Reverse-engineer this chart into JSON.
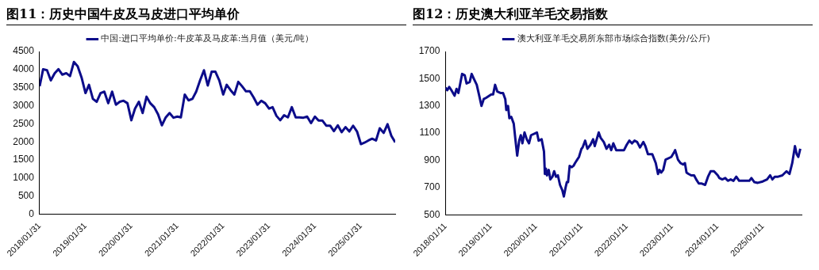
{
  "chart_data": [
    {
      "type": "line",
      "title": "图11：历史中国牛皮及马皮进口平均单价",
      "legend": "top",
      "marker": "none",
      "line_style": "solid",
      "grid": false,
      "xlim": [
        "2018-01-31",
        "2025-10-31"
      ],
      "xticks": [
        {
          "value": "2018-01-31",
          "label": "2018/01/31"
        },
        {
          "value": "2019-01-31",
          "label": "2019/01/31"
        },
        {
          "value": "2020-01-31",
          "label": "2020/01/31"
        },
        {
          "value": "2021-01-31",
          "label": "2021/01/31"
        },
        {
          "value": "2022-01-31",
          "label": "2022/01/31"
        },
        {
          "value": "2023-01-31",
          "label": "2023/01/31"
        },
        {
          "value": "2024-01-31",
          "label": "2024/01/31"
        },
        {
          "value": "2025-01-31",
          "label": "2025/01/31"
        }
      ],
      "ylim": [
        0,
        4500
      ],
      "yticks": [
        0,
        500,
        1000,
        1500,
        2000,
        2500,
        3000,
        3500,
        4000,
        4500
      ],
      "series": [
        {
          "name": "中国:进口平均单价:牛皮革及马皮革:当月值（美元/吨）",
          "color": "#0c0c8a",
          "x": [
            "2018-01-31",
            "2018-02-28",
            "2018-03-31",
            "2018-04-30",
            "2018-05-31",
            "2018-06-30",
            "2018-07-31",
            "2018-08-31",
            "2018-09-30",
            "2018-10-31",
            "2018-11-30",
            "2018-12-31",
            "2019-01-31",
            "2019-02-28",
            "2019-03-31",
            "2019-04-30",
            "2019-05-31",
            "2019-06-30",
            "2019-07-31",
            "2019-08-31",
            "2019-09-30",
            "2019-10-31",
            "2019-11-30",
            "2019-12-31",
            "2020-01-31",
            "2020-02-29",
            "2020-03-31",
            "2020-04-30",
            "2020-05-31",
            "2020-06-30",
            "2020-07-31",
            "2020-08-31",
            "2020-09-30",
            "2020-10-31",
            "2020-11-30",
            "2020-12-31",
            "2021-01-31",
            "2021-02-28",
            "2021-03-31",
            "2021-04-30",
            "2021-05-31",
            "2021-06-30",
            "2021-07-31",
            "2021-08-31",
            "2021-09-30",
            "2021-10-31",
            "2021-11-30",
            "2021-12-31",
            "2022-01-31",
            "2022-02-28",
            "2022-03-31",
            "2022-04-30",
            "2022-05-31",
            "2022-06-30",
            "2022-07-31",
            "2022-08-31",
            "2022-09-30",
            "2022-10-31",
            "2022-11-30",
            "2022-12-31",
            "2023-01-31",
            "2023-02-28",
            "2023-03-31",
            "2023-04-30",
            "2023-05-31",
            "2023-06-30",
            "2023-07-31",
            "2023-08-31",
            "2023-09-30",
            "2023-10-31",
            "2023-11-30",
            "2023-12-31",
            "2024-01-31",
            "2024-02-29",
            "2024-03-31",
            "2024-04-30",
            "2024-05-31",
            "2024-06-30",
            "2024-07-31",
            "2024-08-31",
            "2024-09-30",
            "2024-10-31",
            "2024-11-30",
            "2024-12-31",
            "2025-01-31",
            "2025-02-28",
            "2025-03-31",
            "2025-04-30",
            "2025-05-31",
            "2025-06-30",
            "2025-07-31",
            "2025-08-31",
            "2025-09-30",
            "2025-10-31"
          ],
          "values": [
            3540,
            4010,
            3980,
            3700,
            3900,
            4010,
            3860,
            3900,
            3820,
            4210,
            4090,
            3780,
            3350,
            3580,
            3190,
            3110,
            3350,
            3390,
            3070,
            3390,
            3030,
            3110,
            3140,
            3070,
            2600,
            2920,
            3110,
            2800,
            3250,
            3070,
            2960,
            2760,
            2460,
            2680,
            2800,
            2670,
            2700,
            2680,
            3310,
            3150,
            3190,
            3390,
            3700,
            3980,
            3560,
            3940,
            3940,
            3700,
            3310,
            3580,
            3430,
            3310,
            3660,
            3540,
            3400,
            3400,
            3230,
            3030,
            3140,
            3070,
            2920,
            2960,
            2720,
            2600,
            2740,
            2680,
            2960,
            2680,
            2680,
            2670,
            2700,
            2520,
            2700,
            2590,
            2590,
            2450,
            2450,
            2300,
            2460,
            2270,
            2410,
            2290,
            2450,
            2290,
            1940,
            1980,
            2040,
            2090,
            2040,
            2380,
            2250,
            2490,
            2170,
            1990
          ]
        }
      ]
    },
    {
      "type": "line",
      "title": "图12：历史澳大利亚羊毛交易指数",
      "legend": "top",
      "marker": "none",
      "line_style": "solid",
      "grid": false,
      "xlim": [
        "2018-01-11",
        "2025-11-20"
      ],
      "xticks": [
        {
          "value": "2018-01-11",
          "label": "2018/01/11"
        },
        {
          "value": "2019-01-11",
          "label": "2019/01/11"
        },
        {
          "value": "2020-01-11",
          "label": "2020/01/11"
        },
        {
          "value": "2021-01-11",
          "label": "2021/01/11"
        },
        {
          "value": "2022-01-11",
          "label": "2022/01/11"
        },
        {
          "value": "2023-01-11",
          "label": "2023/01/11"
        },
        {
          "value": "2024-01-11",
          "label": "2024/01/11"
        },
        {
          "value": "2025-01-11",
          "label": "2025/01/11"
        }
      ],
      "ylim": [
        500,
        1700
      ],
      "yticks": [
        500,
        700,
        900,
        1100,
        1300,
        1500,
        1700
      ],
      "series": [
        {
          "name": "澳大利亚羊毛交易所东部市场综合指数(美分/公斤)",
          "color": "#0c0c8a",
          "x": [
            "2018-01-11",
            "2018-01-25",
            "2018-02-10",
            "2018-02-28",
            "2018-03-25",
            "2018-04-10",
            "2018-04-25",
            "2018-05-25",
            "2018-06-15",
            "2018-06-30",
            "2018-07-25",
            "2018-08-10",
            "2018-08-25",
            "2018-09-20",
            "2018-10-10",
            "2018-10-28",
            "2018-11-15",
            "2018-12-05",
            "2019-01-15",
            "2019-01-30",
            "2019-02-15",
            "2019-03-05",
            "2019-03-30",
            "2019-04-20",
            "2019-05-08",
            "2019-05-16",
            "2019-05-30",
            "2019-06-10",
            "2019-06-25",
            "2019-07-15",
            "2019-08-01",
            "2019-08-12",
            "2019-08-28",
            "2019-09-10",
            "2019-09-23",
            "2019-10-10",
            "2019-10-28",
            "2019-11-15",
            "2019-12-02",
            "2020-01-18",
            "2020-02-01",
            "2020-02-25",
            "2020-03-15",
            "2020-03-22",
            "2020-03-30",
            "2020-04-08",
            "2020-04-22",
            "2020-05-05",
            "2020-05-22",
            "2020-06-05",
            "2020-06-20",
            "2020-07-05",
            "2020-07-22",
            "2020-08-10",
            "2020-08-22",
            "2020-09-05",
            "2020-09-15",
            "2020-09-25",
            "2020-10-08",
            "2020-10-25",
            "2020-11-08",
            "2020-11-20",
            "2020-12-08",
            "2020-12-22",
            "2021-01-11",
            "2021-01-20",
            "2021-02-10",
            "2021-02-28",
            "2021-03-25",
            "2021-04-15",
            "2021-04-28",
            "2021-05-30",
            "2021-06-15",
            "2021-07-10",
            "2021-08-01",
            "2021-08-22",
            "2021-09-08",
            "2021-09-25",
            "2021-10-18",
            "2021-12-20",
            "2022-01-11",
            "2022-02-01",
            "2022-02-22",
            "2022-03-15",
            "2022-04-05",
            "2022-04-28",
            "2022-05-25",
            "2022-06-10",
            "2022-07-01",
            "2022-08-05",
            "2022-09-02",
            "2022-09-20",
            "2022-10-02",
            "2022-10-15",
            "2022-11-01",
            "2022-11-20",
            "2023-01-05",
            "2023-01-25",
            "2023-02-05",
            "2023-02-28",
            "2023-03-20",
            "2023-04-10",
            "2023-04-25",
            "2023-05-08",
            "2023-05-25",
            "2023-06-15",
            "2023-07-08",
            "2023-07-25",
            "2023-08-15",
            "2023-09-08",
            "2023-10-05",
            "2023-10-28",
            "2023-11-18",
            "2023-12-15",
            "2024-01-15",
            "2024-01-28",
            "2024-02-20",
            "2024-03-15",
            "2024-04-05",
            "2024-04-28",
            "2024-05-20",
            "2024-06-12",
            "2024-07-05",
            "2024-08-20",
            "2024-09-25",
            "2024-10-12",
            "2024-11-05",
            "2024-12-02",
            "2025-01-11",
            "2025-02-15",
            "2025-03-12",
            "2025-03-30",
            "2025-04-18",
            "2025-05-15",
            "2025-06-18",
            "2025-07-22",
            "2025-08-15",
            "2025-09-06",
            "2025-09-28",
            "2025-10-12",
            "2025-10-25",
            "2025-11-10"
          ],
          "values": [
            1435,
            1415,
            1440,
            1415,
            1375,
            1425,
            1395,
            1535,
            1525,
            1465,
            1475,
            1535,
            1505,
            1455,
            1375,
            1300,
            1350,
            1360,
            1385,
            1385,
            1455,
            1405,
            1395,
            1395,
            1350,
            1270,
            1300,
            1210,
            1220,
            1170,
            1025,
            935,
            1045,
            1085,
            1025,
            1105,
            1055,
            1025,
            1085,
            1105,
            1045,
            1055,
            965,
            800,
            840,
            790,
            830,
            760,
            780,
            820,
            780,
            790,
            720,
            680,
            635,
            700,
            740,
            740,
            860,
            850,
            860,
            880,
            905,
            925,
            985,
            995,
            1045,
            985,
            1015,
            1055,
            1005,
            1105,
            1065,
            1035,
            985,
            1015,
            975,
            1025,
            975,
            975,
            1015,
            1045,
            1025,
            1045,
            1035,
            995,
            1035,
            1005,
            945,
            945,
            880,
            800,
            830,
            810,
            830,
            905,
            925,
            955,
            975,
            905,
            880,
            870,
            880,
            810,
            800,
            790,
            790,
            760,
            730,
            730,
            720,
            780,
            820,
            820,
            790,
            770,
            760,
            770,
            750,
            760,
            750,
            780,
            750,
            750,
            750,
            770,
            740,
            735,
            745,
            760,
            790,
            760,
            780,
            780,
            790,
            820,
            800,
            880,
            1005,
            945,
            925,
            985
          ]
        }
      ]
    }
  ]
}
